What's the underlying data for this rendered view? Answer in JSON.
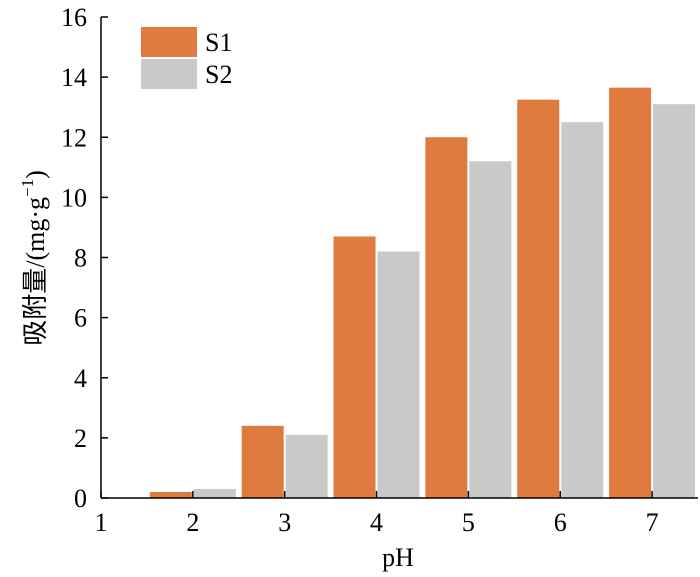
{
  "chart_data": {
    "type": "bar",
    "title": "",
    "xlabel": "pH",
    "ylabel_main": "吸附量/(mg·g",
    "ylabel_sup": "−1",
    "ylabel_close": ")",
    "x_ticks": [
      "1",
      "2",
      "3",
      "4",
      "5",
      "6",
      "7"
    ],
    "y_ticks": [
      "0",
      "2",
      "4",
      "6",
      "8",
      "10",
      "12",
      "14",
      "16"
    ],
    "xlim": [
      1,
      7.5
    ],
    "ylim": [
      0,
      16
    ],
    "categories": [
      "2",
      "3",
      "4",
      "5",
      "6",
      "7"
    ],
    "series": [
      {
        "name": "S1",
        "color": "#E07B40",
        "x": [
          2,
          3,
          4,
          5,
          6,
          7
        ],
        "values": [
          0.2,
          2.4,
          8.7,
          12.0,
          13.25,
          13.65
        ]
      },
      {
        "name": "S2",
        "color": "#C9C9C9",
        "x": [
          2,
          3,
          4,
          5,
          6,
          7
        ],
        "values": [
          0.3,
          2.1,
          8.2,
          11.2,
          12.5,
          13.1
        ]
      }
    ],
    "legend_position": "top-left",
    "grid": false
  }
}
